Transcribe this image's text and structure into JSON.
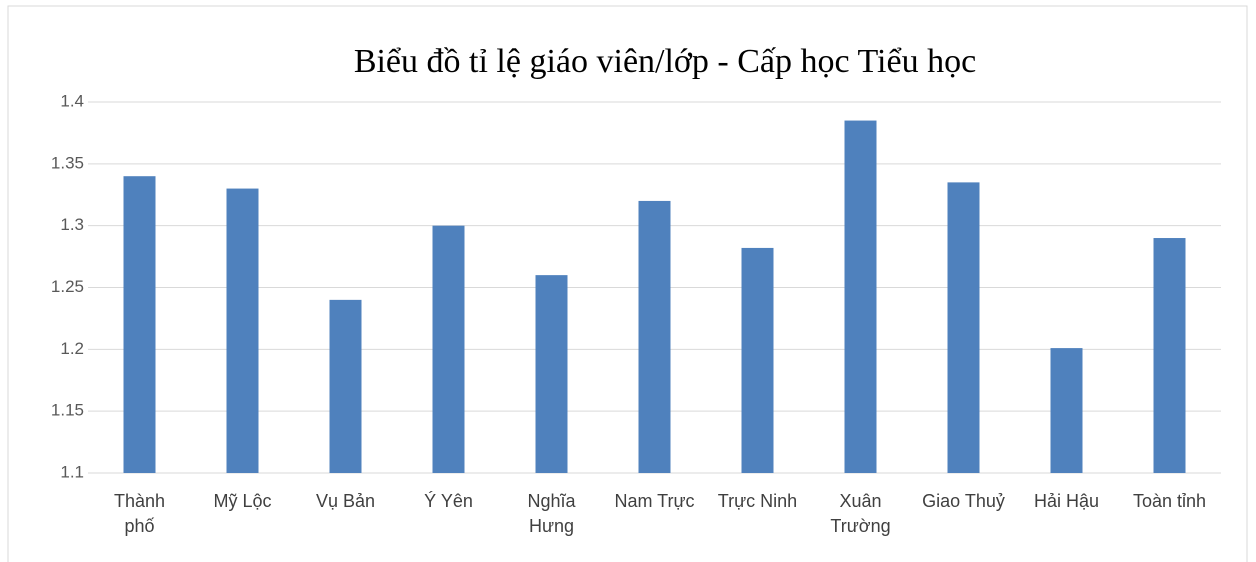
{
  "chart_data": {
    "type": "bar",
    "title": "Biểu đồ tỉ lệ giáo viên/lớp - Cấp học Tiểu học",
    "categories": [
      "Thành\nphố",
      "Mỹ Lộc",
      "Vụ Bản",
      "Ý Yên",
      "Nghĩa\nHưng",
      "Nam Trực",
      "Trực Ninh",
      "Xuân\nTrường",
      "Giao Thuỷ",
      "Hải Hậu",
      "Toàn tỉnh"
    ],
    "values": [
      1.34,
      1.33,
      1.24,
      1.3,
      1.26,
      1.32,
      1.282,
      1.385,
      1.335,
      1.201,
      1.29
    ],
    "color": "#4f81bd",
    "ylim": [
      1.1,
      1.4
    ],
    "yticks": [
      1.1,
      1.15,
      1.2,
      1.25,
      1.3,
      1.35,
      1.4
    ],
    "grid": true
  }
}
